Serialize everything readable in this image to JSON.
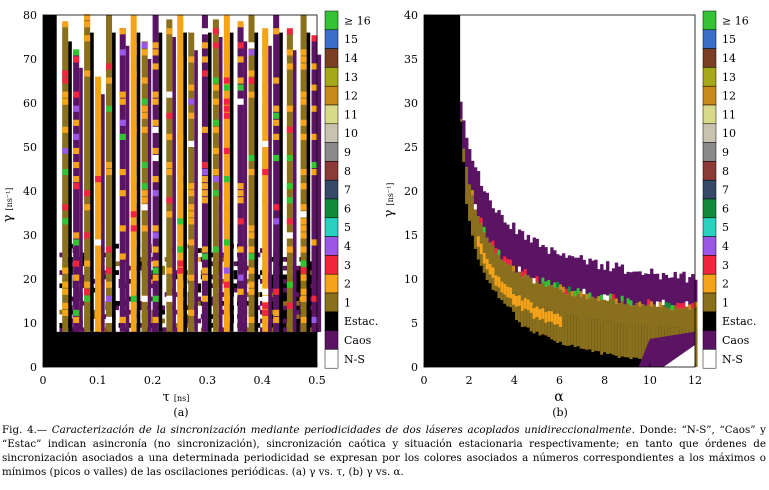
{
  "chart_data": [
    {
      "id": "a",
      "type": "heatmap",
      "panel_label": "(a)",
      "xlabel": "τ",
      "xlabel_units": "[ns]",
      "ylabel": "γ",
      "ylabel_units": "[ns⁻¹]",
      "xlim": [
        0,
        0.5
      ],
      "ylim": [
        0,
        80
      ],
      "xticks": [
        0,
        0.1,
        0.2,
        0.3,
        0.4,
        0.5
      ],
      "xtick_labels": [
        "0",
        "0.1",
        "0.2",
        "0.3",
        "0.4",
        "0.5"
      ],
      "yticks": [
        0,
        10,
        20,
        30,
        40,
        50,
        60,
        70,
        80
      ],
      "ytick_labels": [
        "0",
        "10",
        "20",
        "30",
        "40",
        "50",
        "60",
        "70",
        "80"
      ],
      "stripes": [
        {
          "tau": 0.035,
          "top": 78,
          "kind": "n1"
        },
        {
          "tau": 0.055,
          "top": 72,
          "kind": "caos"
        },
        {
          "tau": 0.075,
          "top": 80,
          "kind": "n1"
        },
        {
          "tau": 0.095,
          "top": 66,
          "kind": "n2"
        },
        {
          "tau": 0.115,
          "top": 80,
          "kind": "n1"
        },
        {
          "tau": 0.14,
          "top": 77,
          "kind": "caos"
        },
        {
          "tau": 0.16,
          "top": 80,
          "kind": "n2"
        },
        {
          "tau": 0.18,
          "top": 74,
          "kind": "n1"
        },
        {
          "tau": 0.2,
          "top": 80,
          "kind": "caos"
        },
        {
          "tau": 0.225,
          "top": 79,
          "kind": "n1"
        },
        {
          "tau": 0.245,
          "top": 80,
          "kind": "n2"
        },
        {
          "tau": 0.265,
          "top": 76,
          "kind": "n1"
        },
        {
          "tau": 0.29,
          "top": 80,
          "kind": "caos"
        },
        {
          "tau": 0.31,
          "top": 79,
          "kind": "n1"
        },
        {
          "tau": 0.33,
          "top": 80,
          "kind": "n2"
        },
        {
          "tau": 0.355,
          "top": 78,
          "kind": "caos"
        },
        {
          "tau": 0.375,
          "top": 80,
          "kind": "n1"
        },
        {
          "tau": 0.4,
          "top": 77,
          "kind": "n2"
        },
        {
          "tau": 0.42,
          "top": 80,
          "kind": "caos"
        },
        {
          "tau": 0.445,
          "top": 76,
          "kind": "n1"
        },
        {
          "tau": 0.47,
          "top": 80,
          "kind": "n1"
        },
        {
          "tau": 0.49,
          "top": 75,
          "kind": "caos"
        }
      ]
    },
    {
      "id": "b",
      "type": "heatmap",
      "panel_label": "(b)",
      "xlabel": "α",
      "ylabel": "γ",
      "ylabel_units": "[ns⁻¹]",
      "xlim": [
        0,
        12
      ],
      "ylim": [
        0,
        40
      ],
      "xticks": [
        0,
        2,
        4,
        6,
        8,
        10,
        12
      ],
      "xtick_labels": [
        "0",
        "2",
        "4",
        "6",
        "8",
        "10",
        "12"
      ],
      "yticks": [
        0,
        5,
        10,
        15,
        20,
        25,
        30,
        35,
        40
      ],
      "ytick_labels": [
        "0",
        "5",
        "10",
        "15",
        "20",
        "25",
        "30",
        "35",
        "40"
      ],
      "regions": [
        {
          "name": "N-S",
          "desc": "upper right"
        },
        {
          "name": "Caos",
          "desc": "purple band"
        },
        {
          "name": "1",
          "desc": "olive synchronization band"
        },
        {
          "name": "Estac.",
          "desc": "black lower-left region"
        }
      ]
    }
  ],
  "legend": {
    "items": [
      {
        "label": "≥ 16",
        "color": "#34c334"
      },
      {
        "label": "15",
        "color": "#3a6fc9"
      },
      {
        "label": "14",
        "color": "#7a3f23"
      },
      {
        "label": "13",
        "color": "#a7a71a"
      },
      {
        "label": "12",
        "color": "#c98a1c"
      },
      {
        "label": "11",
        "color": "#d9d98a"
      },
      {
        "label": "10",
        "color": "#c8c2b0"
      },
      {
        "label": "9",
        "color": "#8a8a8a"
      },
      {
        "label": "8",
        "color": "#8c3a35"
      },
      {
        "label": "7",
        "color": "#344a68"
      },
      {
        "label": "6",
        "color": "#118a3a"
      },
      {
        "label": "5",
        "color": "#2ad1c0"
      },
      {
        "label": "4",
        "color": "#9a57e6"
      },
      {
        "label": "3",
        "color": "#f0263e"
      },
      {
        "label": "2",
        "color": "#f4a31a"
      },
      {
        "label": "1",
        "color": "#8a6f1c"
      },
      {
        "label": "Estac.",
        "color": "#000000"
      },
      {
        "label": "Caos",
        "color": "#5a1463"
      },
      {
        "label": "N-S",
        "color": "#ffffff"
      }
    ]
  },
  "caption": {
    "fig_label": "Fig. 4.—",
    "title": "Caracterización de la sincronización mediante periodicidades de dos láseres acoplados unidireccionalmente.",
    "rest": "Donde: “N-S”, “Caos” y “Estac” indican asincronía (no sincronización), sincronización caótica y situación estacionaria respectivamente; en tanto que órdenes de sincronización asociados a una determinada periodicidad se expresan por los colores asociados a números correspondientes a los máximos o mínimos (picos o valles) de las oscilaciones periódicas. (a) γ vs. τ, (b) γ vs. α."
  }
}
